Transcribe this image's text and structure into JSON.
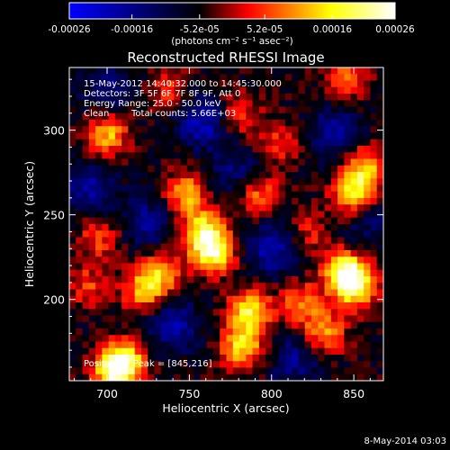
{
  "chart_data": {
    "type": "heatmap",
    "title": "Reconstructed RHESSI Image",
    "xlabel": "Heliocentric X (arcsec)",
    "ylabel": "Heliocentric Y (arcsec)",
    "xlim": [
      677,
      868
    ],
    "ylim": [
      152,
      337
    ],
    "x_ticks": [
      700,
      750,
      800,
      850
    ],
    "y_ticks": [
      200,
      250,
      300
    ],
    "colorbar": {
      "range": [
        -0.00026,
        0.00026
      ],
      "tick_values": [
        -0.00026,
        -0.00016,
        -5.2e-05,
        5.2e-05,
        0.00016,
        0.00026
      ],
      "tick_labels": [
        "-0.00026",
        "-0.00016",
        "-5.2e-05",
        "5.2e-05",
        "0.00016",
        "0.00026"
      ],
      "unit_label": "(photons cm⁻² s⁻¹ asec⁻²)",
      "colors": [
        "#0000ff",
        "#000000",
        "#ff0000",
        "#ffff00",
        "#ffffff"
      ]
    },
    "hot_spots": [
      {
        "x": 845,
        "y": 216,
        "v": 1.0
      },
      {
        "x": 851,
        "y": 207,
        "v": 0.8
      },
      {
        "x": 710,
        "y": 164,
        "v": 0.92
      },
      {
        "x": 704,
        "y": 155,
        "v": 0.8
      },
      {
        "x": 787,
        "y": 193,
        "v": 0.88
      },
      {
        "x": 782,
        "y": 172,
        "v": 0.8
      },
      {
        "x": 765,
        "y": 228,
        "v": 0.95
      },
      {
        "x": 758,
        "y": 240,
        "v": 0.8
      },
      {
        "x": 748,
        "y": 263,
        "v": 0.7
      },
      {
        "x": 732,
        "y": 215,
        "v": 0.65
      },
      {
        "x": 722,
        "y": 205,
        "v": 0.6
      },
      {
        "x": 700,
        "y": 297,
        "v": 0.7
      },
      {
        "x": 695,
        "y": 237,
        "v": 0.45
      },
      {
        "x": 688,
        "y": 208,
        "v": 0.4
      },
      {
        "x": 850,
        "y": 262,
        "v": 0.82
      },
      {
        "x": 857,
        "y": 278,
        "v": 0.7
      },
      {
        "x": 832,
        "y": 180,
        "v": 0.65
      },
      {
        "x": 818,
        "y": 198,
        "v": 0.55
      },
      {
        "x": 792,
        "y": 262,
        "v": 0.55
      },
      {
        "x": 805,
        "y": 292,
        "v": 0.4
      },
      {
        "x": 738,
        "y": 325,
        "v": 0.4
      },
      {
        "x": 780,
        "y": 310,
        "v": 0.45
      },
      {
        "x": 845,
        "y": 330,
        "v": 0.5
      },
      {
        "x": 823,
        "y": 240,
        "v": 0.35
      }
    ],
    "cold_spots": [
      {
        "x": 758,
        "y": 305,
        "v": -0.55
      },
      {
        "x": 800,
        "y": 230,
        "v": -0.5
      },
      {
        "x": 740,
        "y": 185,
        "v": -0.5
      },
      {
        "x": 690,
        "y": 265,
        "v": -0.45
      },
      {
        "x": 725,
        "y": 245,
        "v": -0.4
      },
      {
        "x": 838,
        "y": 298,
        "v": -0.45
      },
      {
        "x": 778,
        "y": 275,
        "v": -0.35
      },
      {
        "x": 815,
        "y": 165,
        "v": -0.4
      },
      {
        "x": 700,
        "y": 325,
        "v": -0.35
      },
      {
        "x": 858,
        "y": 245,
        "v": -0.3
      }
    ],
    "annotations": {
      "time_range": "15-May-2012 14:40:32.000 to 14:45:30.000",
      "detectors": "Detectors: 3F 5F 6F 7F 8F 9F, Att 0",
      "energy": "Energy Range: 25.0 - 50.0 keV",
      "method": "Clean",
      "counts": "Total counts: 5.66E+03",
      "peak": "Position of Peak = [845,216]"
    }
  },
  "footer": {
    "date": "8-May-2014 03:03"
  }
}
